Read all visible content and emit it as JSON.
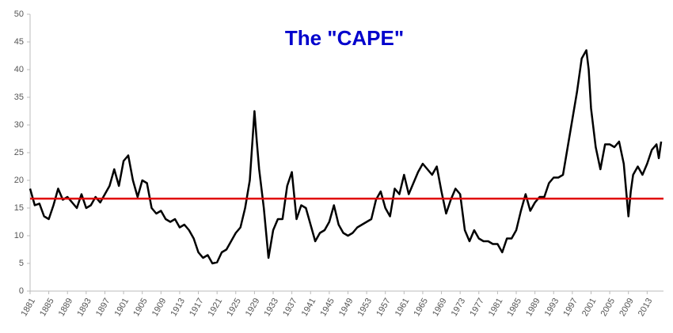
{
  "chart_data": {
    "type": "line",
    "title": "The \"CAPE\"",
    "x": [
      1881,
      1881.5,
      1882,
      1883,
      1884,
      1885,
      1886,
      1887,
      1888,
      1889,
      1890,
      1891,
      1892,
      1893,
      1894,
      1895,
      1896,
      1897,
      1898,
      1899,
      1900,
      1901,
      1902,
      1903,
      1904,
      1905,
      1906,
      1907,
      1908,
      1909,
      1910,
      1911,
      1912,
      1913,
      1914,
      1915,
      1916,
      1917,
      1918,
      1919,
      1920,
      1921,
      1922,
      1923,
      1924,
      1925,
      1926,
      1927,
      1928,
      1929,
      1929.5,
      1930,
      1931,
      1932,
      1933,
      1934,
      1935,
      1936,
      1937,
      1938,
      1939,
      1940,
      1941,
      1942,
      1943,
      1944,
      1945,
      1946,
      1947,
      1948,
      1949,
      1950,
      1951,
      1952,
      1953,
      1954,
      1955,
      1956,
      1957,
      1958,
      1959,
      1960,
      1961,
      1962,
      1963,
      1964,
      1965,
      1966,
      1967,
      1968,
      1969,
      1970,
      1971,
      1972,
      1973,
      1974,
      1975,
      1976,
      1977,
      1978,
      1979,
      1980,
      1981,
      1982,
      1983,
      1984,
      1985,
      1986,
      1987,
      1988,
      1989,
      1990,
      1991,
      1992,
      1993,
      1994,
      1995,
      1996,
      1997,
      1998,
      1999,
      2000,
      2000.5,
      2001,
      2002,
      2003,
      2004,
      2005,
      2006,
      2007,
      2008,
      2009,
      2009.5,
      2010,
      2011,
      2012,
      2013,
      2014,
      2015,
      2015.5,
      2016
    ],
    "series": [
      {
        "color": "#000000",
        "values": [
          18.5,
          17,
          15.5,
          15.8,
          13.5,
          13,
          15.5,
          18.5,
          16.5,
          17,
          16,
          15,
          17.5,
          15,
          15.5,
          17,
          16,
          17.5,
          19,
          22,
          19,
          23.5,
          24.5,
          20,
          17,
          20,
          19.5,
          15,
          14,
          14.5,
          13,
          12.5,
          13,
          11.5,
          12,
          11,
          9.5,
          7,
          6,
          6.5,
          5,
          5.2,
          7,
          7.5,
          9,
          10.5,
          11.5,
          15,
          20,
          32.5,
          27,
          22,
          15,
          6,
          11,
          13,
          13,
          19,
          21.5,
          13,
          15.5,
          15,
          12,
          9,
          10.5,
          11,
          12.5,
          15.5,
          12,
          10.5,
          10,
          10.5,
          11.5,
          12,
          12.5,
          13,
          16.5,
          18,
          15,
          13.5,
          18.5,
          17.5,
          21,
          17.5,
          19.5,
          21.5,
          23,
          22,
          21,
          22.5,
          18,
          14,
          16.5,
          18.5,
          17.5,
          11,
          9,
          11,
          9.5,
          9,
          9,
          8.5,
          8.5,
          7,
          9.5,
          9.5,
          11,
          14.5,
          17.5,
          14.5,
          16,
          17,
          17,
          19.5,
          20.5,
          20.5,
          21,
          26,
          31,
          36,
          42,
          43.5,
          40,
          33,
          26,
          22,
          26.5,
          26.5,
          26,
          27,
          23,
          13.5,
          18,
          21,
          22.5,
          21,
          23,
          25.5,
          26.5,
          24,
          27
        ]
      }
    ],
    "reference_line": {
      "value": 16.7,
      "color": "#e00000"
    },
    "xlim": [
      1881,
      2016.5
    ],
    "ylim": [
      0,
      50
    ],
    "xticks": [
      1881,
      1885,
      1889,
      1893,
      1897,
      1901,
      1905,
      1909,
      1913,
      1917,
      1921,
      1925,
      1929,
      1933,
      1937,
      1941,
      1945,
      1949,
      1953,
      1957,
      1961,
      1965,
      1969,
      1973,
      1977,
      1981,
      1985,
      1989,
      1993,
      1997,
      2001,
      2005,
      2009,
      2013
    ],
    "yticks": [
      0,
      5,
      10,
      15,
      20,
      25,
      30,
      35,
      40,
      45,
      50
    ]
  }
}
